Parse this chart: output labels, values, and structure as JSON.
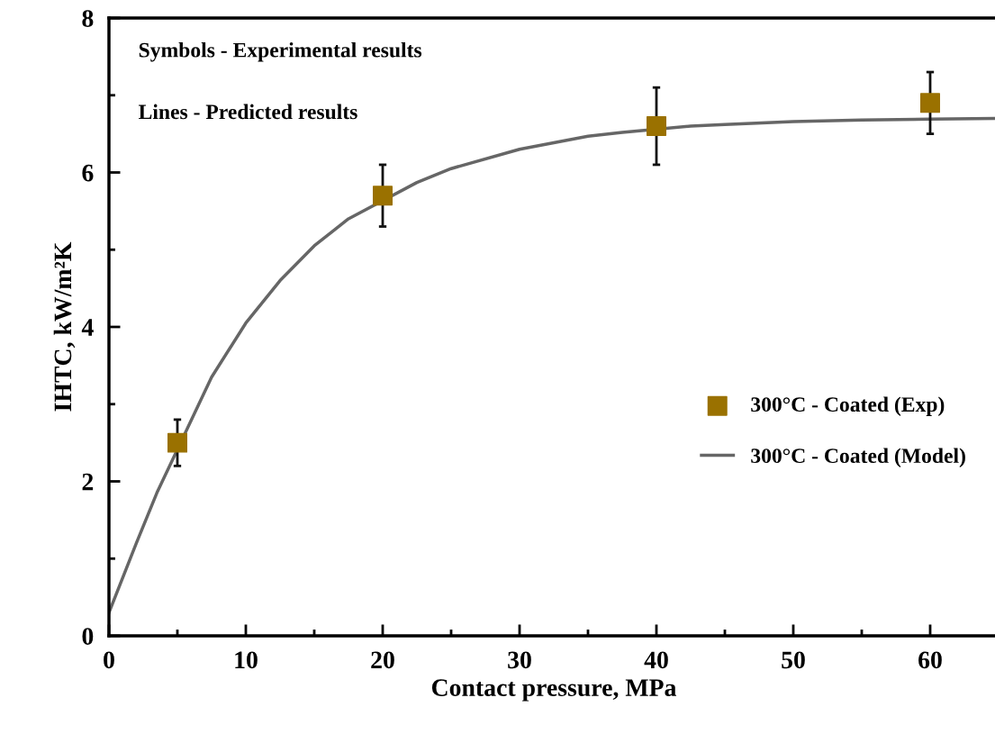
{
  "chart_data": {
    "type": "scatter",
    "xlabel": "Contact pressure, MPa",
    "ylabel": "IHTC, kW/m²K",
    "annotations": [
      "Symbols - Experimental results",
      "Lines - Predicted results"
    ],
    "xlim": [
      0,
      65
    ],
    "xticks": [
      0,
      10,
      20,
      30,
      40,
      50,
      60
    ],
    "ylim": [
      0,
      8
    ],
    "yticks": [
      0,
      2,
      4,
      6,
      8
    ],
    "grid": false,
    "legend": "right",
    "series": [
      {
        "name": "300°C - Coated (Exp)",
        "marker": "square",
        "color": "#9a7100",
        "x": [
          5,
          20,
          40,
          60
        ],
        "values": [
          2.5,
          5.7,
          6.6,
          6.9
        ],
        "errors": [
          0.3,
          0.4,
          0.5,
          0.4
        ]
      },
      {
        "name": "300°C - Coated (Model)",
        "type": "line",
        "marker": "none",
        "line_style": "solid",
        "color": "#666666",
        "x": [
          0,
          2,
          3.5,
          7.5,
          10,
          12.5,
          15,
          17.5,
          22.5,
          25,
          30,
          35,
          37.5,
          42.5,
          45,
          50,
          55,
          60,
          65
        ],
        "values": [
          0.3,
          1.2,
          1.85,
          3.35,
          4.05,
          4.6,
          5.05,
          5.4,
          5.87,
          6.05,
          6.3,
          6.47,
          6.52,
          6.6,
          6.62,
          6.66,
          6.68,
          6.69,
          6.7
        ]
      }
    ]
  }
}
